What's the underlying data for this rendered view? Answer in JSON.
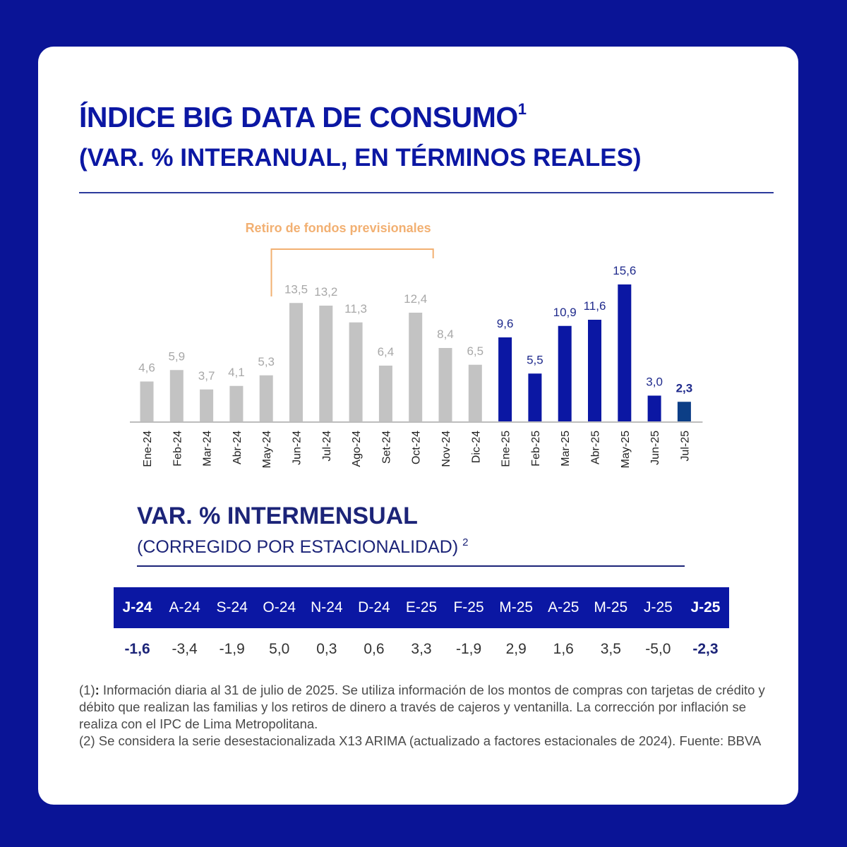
{
  "header": {
    "title": "ÍNDICE BIG DATA DE CONSUMO",
    "title_sup": "1",
    "subtitle": "(VAR. % INTERANUAL, EN TÉRMINOS REALES)"
  },
  "annotation": {
    "label": "Retiro de fondos previsionales",
    "from": "Jun-24",
    "to": "Oct-24",
    "color": "#f2b072"
  },
  "colors": {
    "bar_2024": "#c3c3c3",
    "bar_2025": "#0b17a3",
    "bar_latest": "#0c3e86",
    "label_2024": "#a8a8a8",
    "label_2025": "#1f2a8c"
  },
  "chart_data": {
    "type": "bar",
    "title": "ÍNDICE BIG DATA DE CONSUMO",
    "subtitle": "(VAR. % INTERANUAL, EN TÉRMINOS REALES)",
    "categories": [
      "Ene-24",
      "Feb-24",
      "Mar-24",
      "Abr-24",
      "May-24",
      "Jun-24",
      "Jul-24",
      "Ago-24",
      "Set-24",
      "Oct-24",
      "Nov-24",
      "Dic-24",
      "Ene-25",
      "Feb-25",
      "Mar-25",
      "Abr-25",
      "May-25",
      "Jun-25",
      "Jul-25"
    ],
    "values": [
      4.6,
      5.9,
      3.7,
      4.1,
      5.3,
      13.5,
      13.2,
      11.3,
      6.4,
      12.4,
      8.4,
      6.5,
      9.6,
      5.5,
      10.9,
      11.6,
      15.6,
      3.0,
      2.3
    ],
    "value_labels": [
      "4,6",
      "5,9",
      "3,7",
      "4,1",
      "5,3",
      "13,5",
      "13,2",
      "11,3",
      "6,4",
      "12,4",
      "8,4",
      "6,5",
      "9,6",
      "5,5",
      "10,9",
      "11,6",
      "15,6",
      "3,0",
      "2,3"
    ],
    "xlabel": "",
    "ylabel": "",
    "ylim": [
      0,
      16
    ],
    "grid": false,
    "legend": "none"
  },
  "mom": {
    "title": "VAR. % INTERMENSUAL",
    "subtitle": "(CORREGIDO POR ESTACIONALIDAD)",
    "subtitle_sup": "2",
    "headers": [
      "J-24",
      "A-24",
      "S-24",
      "O-24",
      "N-24",
      "D-24",
      "E-25",
      "F-25",
      "M-25",
      "A-25",
      "M-25",
      "J-25",
      "J-25"
    ],
    "values": [
      "-1,6",
      "-3,4",
      "-1,9",
      "5,0",
      "0,3",
      "0,6",
      "3,3",
      "-1,9",
      "2,9",
      "1,6",
      "3,5",
      "-5,0",
      "-2,3"
    ],
    "bold_indices": [
      0,
      12
    ]
  },
  "notes": {
    "note1_prefix": "(1)",
    "note1_colon": ":",
    "note1_text": " Información diaria al 31 de julio de 2025. Se utiliza información de los montos de compras con tarjetas de crédito y débito que realizan las familias y los retiros de dinero a través de cajeros y ventanilla. La corrección por inflación se realiza con el IPC de Lima Metropolitana.",
    "note2": "(2) Se considera la serie desestacionalizada X13 ARIMA (actualizado a factores estacionales de 2024). Fuente: BBVA"
  }
}
